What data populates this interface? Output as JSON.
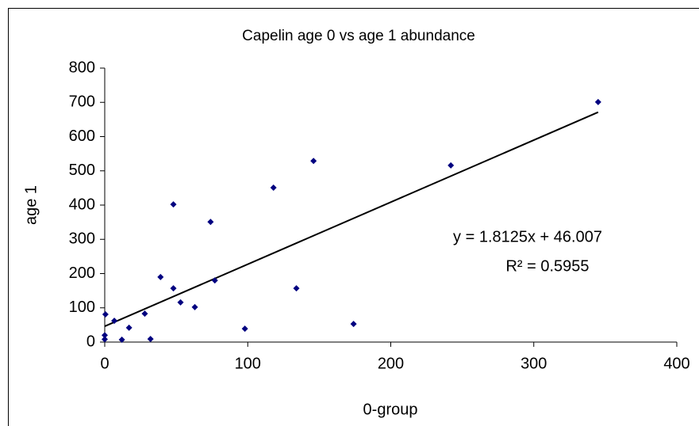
{
  "chart_data": {
    "type": "scatter",
    "title": "Capelin age 0 vs age 1 abundance",
    "x_label": "0-group",
    "y_label": "age 1",
    "x": [
      0.5,
      0,
      0,
      6.7,
      12,
      17,
      28,
      32,
      39,
      48,
      48,
      53,
      63,
      74,
      77,
      98,
      118,
      134,
      146,
      174,
      242,
      345
    ],
    "y": [
      81,
      20,
      8,
      62,
      7,
      42,
      83,
      9,
      190,
      402,
      157,
      116,
      102,
      351,
      180,
      39,
      451,
      157,
      529,
      53,
      516,
      701
    ],
    "color": "#000080",
    "xlim": [
      0,
      400
    ],
    "xticks": [
      0,
      100,
      200,
      300,
      400
    ],
    "ylim": [
      0,
      800
    ],
    "yticks": [
      0,
      100,
      200,
      300,
      400,
      500,
      600,
      700,
      800
    ],
    "grid": false,
    "trendline": {
      "slope": 1.8125,
      "intercept": 46.007,
      "color": "#000000",
      "equation": "y = 1.8125x + 46.007",
      "r_squared": {
        "value": 0.5955,
        "label": "R² = 0.5955"
      }
    }
  }
}
